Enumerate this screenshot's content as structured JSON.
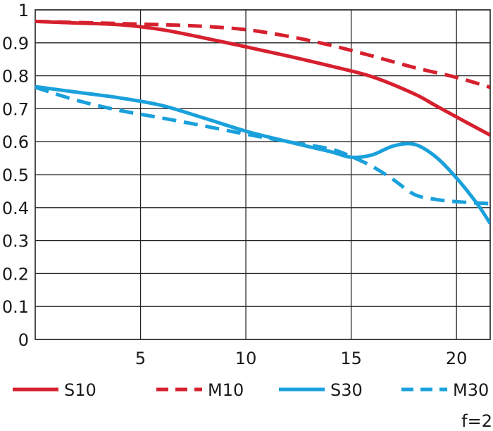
{
  "chart_data": {
    "type": "line",
    "title": "",
    "xlabel": "",
    "ylabel": "",
    "xlim": [
      0,
      21.6
    ],
    "ylim": [
      0,
      1
    ],
    "grid": true,
    "legend_position": "bottom",
    "x_ticks": [
      "5",
      "10",
      "15",
      "20"
    ],
    "y_ticks": [
      "0",
      "0.1",
      "0.2",
      "0.3",
      "0.4",
      "0.5",
      "0.6",
      "0.7",
      "0.8",
      "0.9",
      "1"
    ],
    "annotation": "f=2",
    "series": [
      {
        "name": "S10",
        "color": "#d6202e",
        "style": "solid",
        "points": [
          [
            0,
            0.965
          ],
          [
            2,
            0.96
          ],
          [
            4,
            0.955
          ],
          [
            6,
            0.94
          ],
          [
            8,
            0.915
          ],
          [
            10,
            0.888
          ],
          [
            12,
            0.86
          ],
          [
            14,
            0.83
          ],
          [
            16,
            0.797
          ],
          [
            18,
            0.745
          ],
          [
            19,
            0.71
          ],
          [
            20,
            0.675
          ],
          [
            21.6,
            0.62
          ]
        ]
      },
      {
        "name": "M10",
        "color": "#d6202e",
        "style": "dashed",
        "points": [
          [
            0,
            0.965
          ],
          [
            3,
            0.96
          ],
          [
            6,
            0.955
          ],
          [
            8,
            0.95
          ],
          [
            10,
            0.94
          ],
          [
            12,
            0.92
          ],
          [
            14,
            0.893
          ],
          [
            16,
            0.86
          ],
          [
            18,
            0.825
          ],
          [
            20,
            0.795
          ],
          [
            21.6,
            0.765
          ]
        ]
      },
      {
        "name": "S30",
        "color": "#1aa1dc",
        "style": "solid",
        "points": [
          [
            0,
            0.767
          ],
          [
            2,
            0.75
          ],
          [
            4,
            0.733
          ],
          [
            6,
            0.71
          ],
          [
            8,
            0.672
          ],
          [
            10,
            0.632
          ],
          [
            12,
            0.6
          ],
          [
            14,
            0.57
          ],
          [
            15,
            0.553
          ],
          [
            16,
            0.56
          ],
          [
            17,
            0.587
          ],
          [
            18,
            0.592
          ],
          [
            19,
            0.555
          ],
          [
            20,
            0.49
          ],
          [
            21,
            0.41
          ],
          [
            21.6,
            0.352
          ]
        ]
      },
      {
        "name": "M30",
        "color": "#1aa1dc",
        "style": "dashed",
        "points": [
          [
            0,
            0.765
          ],
          [
            2,
            0.725
          ],
          [
            4,
            0.695
          ],
          [
            6,
            0.672
          ],
          [
            8,
            0.648
          ],
          [
            10,
            0.623
          ],
          [
            12,
            0.6
          ],
          [
            14,
            0.578
          ],
          [
            15,
            0.555
          ],
          [
            16,
            0.525
          ],
          [
            17,
            0.485
          ],
          [
            18,
            0.44
          ],
          [
            19,
            0.425
          ],
          [
            20,
            0.418
          ],
          [
            21.6,
            0.412
          ]
        ]
      }
    ]
  }
}
